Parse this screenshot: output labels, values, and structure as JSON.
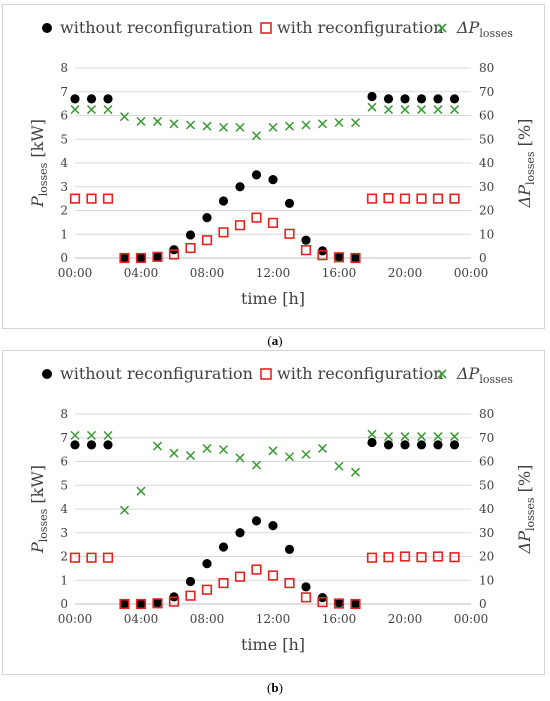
{
  "legend": {
    "series_1": "without reconfiguration",
    "series_2": "with reconfiguration",
    "series_3_prefix": "ΔP",
    "series_3_sub": "losses"
  },
  "captions": {
    "a": "a",
    "b": "b"
  },
  "colors": {
    "series_1": "#000000",
    "series_2": "#e32322",
    "series_3": "#3a9a33",
    "grid": "#d9d9d9",
    "text": "#404040"
  },
  "chart_data": [
    {
      "type": "scatter",
      "xlabel": "time [h]",
      "ylabel_left_prefix": "P",
      "ylabel_left_sub": "losses",
      "ylabel_left_suffix": " [kW]",
      "ylabel_right_prefix": "ΔP",
      "ylabel_right_sub": "losses",
      "ylabel_right_suffix": " [%]",
      "x_ticks": [
        "00:00",
        "04:00",
        "08:00",
        "12:00",
        "16:00",
        "20:00",
        "00:00"
      ],
      "xlim": [
        0,
        24
      ],
      "ylim_left": [
        0,
        8
      ],
      "ylim_right": [
        0,
        80
      ],
      "y_ticks_left": [
        "0",
        "1",
        "2",
        "3",
        "4",
        "5",
        "6",
        "7",
        "8"
      ],
      "y_ticks_right": [
        "0",
        "10",
        "20",
        "30",
        "40",
        "50",
        "60",
        "70",
        "80"
      ],
      "grid": true,
      "legend": "top",
      "x": [
        0,
        1,
        2,
        3,
        4,
        5,
        6,
        7,
        8,
        9,
        10,
        11,
        12,
        13,
        14,
        15,
        16,
        17,
        18,
        19,
        20,
        21,
        22,
        23
      ],
      "series": [
        {
          "name": "without reconfiguration",
          "axis": "left",
          "marker": "dot",
          "values": [
            6.7,
            6.7,
            6.7,
            0,
            0,
            0.05,
            0.35,
            0.97,
            1.7,
            2.4,
            3.0,
            3.5,
            3.3,
            2.3,
            0.75,
            0.3,
            0.05,
            0,
            6.8,
            6.7,
            6.7,
            6.7,
            6.7,
            6.7
          ]
        },
        {
          "name": "with reconfiguration",
          "axis": "left",
          "marker": "square",
          "values": [
            2.5,
            2.5,
            2.5,
            0,
            0,
            0.05,
            0.15,
            0.42,
            0.75,
            1.08,
            1.38,
            1.7,
            1.48,
            1.02,
            0.33,
            0.12,
            0.03,
            0,
            2.5,
            2.52,
            2.5,
            2.5,
            2.5,
            2.5
          ]
        },
        {
          "name": "ΔPlosses",
          "axis": "right",
          "marker": "x",
          "values": [
            62.5,
            62.5,
            62.5,
            59.5,
            57.5,
            57.5,
            56.5,
            56,
            55.5,
            55,
            55,
            51.5,
            55,
            55.5,
            56,
            56.5,
            57,
            57,
            63.5,
            62.5,
            62.5,
            62.5,
            62.5,
            62.5
          ]
        }
      ]
    },
    {
      "type": "scatter",
      "xlabel": "time [h]",
      "ylabel_left_prefix": "P",
      "ylabel_left_sub": "losses",
      "ylabel_left_suffix": " [kW]",
      "ylabel_right_prefix": "ΔP",
      "ylabel_right_sub": "losses",
      "ylabel_right_suffix": " [%]",
      "x_ticks": [
        "00:00",
        "04:00",
        "08:00",
        "12:00",
        "16:00",
        "20:00",
        "00:00"
      ],
      "xlim": [
        0,
        24
      ],
      "ylim_left": [
        0,
        8
      ],
      "ylim_right": [
        0,
        80
      ],
      "y_ticks_left": [
        "0",
        "1",
        "2",
        "3",
        "4",
        "5",
        "6",
        "7",
        "8"
      ],
      "y_ticks_right": [
        "0",
        "10",
        "20",
        "30",
        "40",
        "50",
        "60",
        "70",
        "80"
      ],
      "grid": true,
      "legend": "top",
      "x": [
        0,
        1,
        2,
        3,
        4,
        5,
        6,
        7,
        8,
        9,
        10,
        11,
        12,
        13,
        14,
        15,
        16,
        17,
        18,
        19,
        20,
        21,
        22,
        23
      ],
      "series": [
        {
          "name": "without reconfiguration",
          "axis": "left",
          "marker": "dot",
          "values": [
            6.7,
            6.7,
            6.7,
            0,
            0,
            0.05,
            0.3,
            0.95,
            1.7,
            2.4,
            3.0,
            3.5,
            3.3,
            2.3,
            0.72,
            0.27,
            0.05,
            0,
            6.8,
            6.7,
            6.7,
            6.7,
            6.7,
            6.7
          ]
        },
        {
          "name": "with reconfiguration",
          "axis": "left",
          "marker": "square",
          "values": [
            1.95,
            1.95,
            1.95,
            0,
            0,
            0.03,
            0.1,
            0.35,
            0.6,
            0.88,
            1.15,
            1.45,
            1.2,
            0.88,
            0.28,
            0.08,
            0.02,
            0,
            1.95,
            1.97,
            2.0,
            1.97,
            2.0,
            1.97
          ]
        },
        {
          "name": "ΔPlosses",
          "axis": "right",
          "marker": "x",
          "values": [
            71,
            71,
            71,
            39.5,
            47.5,
            66.5,
            63.5,
            62.5,
            65.5,
            65,
            61.5,
            58.5,
            64.5,
            62,
            63,
            65.5,
            58,
            55.5,
            71.5,
            70.5,
            70.5,
            70.5,
            70.5,
            70.5
          ]
        }
      ]
    }
  ]
}
